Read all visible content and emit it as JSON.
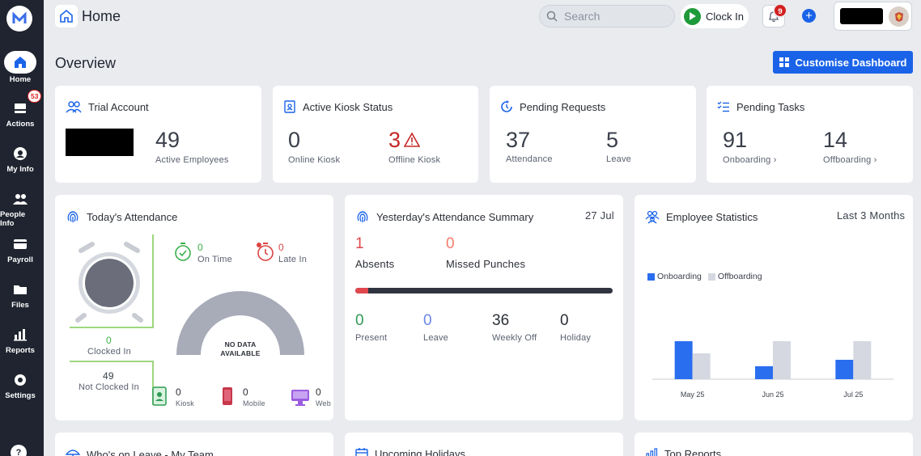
{
  "app": {
    "title": "Home",
    "search_placeholder": "Search",
    "clock_in_label": "Clock In",
    "notification_count": "9",
    "brand_color": "#1a63e8"
  },
  "sidebar": {
    "items": [
      {
        "label": "Home",
        "icon": "home-icon"
      },
      {
        "label": "Actions",
        "icon": "inbox-icon",
        "badge": "53"
      },
      {
        "label": "My Info",
        "icon": "user-circle-icon"
      },
      {
        "label": "People Info",
        "icon": "people-icon"
      },
      {
        "label": "Payroll",
        "icon": "card-icon"
      },
      {
        "label": "Files",
        "icon": "folder-icon"
      },
      {
        "label": "Reports",
        "icon": "bar-chart-icon"
      },
      {
        "label": "Settings",
        "icon": "gear-icon"
      }
    ],
    "help_label": "?"
  },
  "overview": {
    "title": "Overview",
    "customise_label": "Customise Dashboard"
  },
  "trial": {
    "title": "Trial Account",
    "count": "49",
    "label": "Active Employees"
  },
  "kiosk": {
    "title": "Active Kiosk Status",
    "online_count": "0",
    "online_label": "Online Kiosk",
    "offline_count": "3",
    "offline_label": "Offline Kiosk"
  },
  "pending_requests": {
    "title": "Pending Requests",
    "attendance_count": "37",
    "attendance_label": "Attendance",
    "leave_count": "5",
    "leave_label": "Leave"
  },
  "pending_tasks": {
    "title": "Pending Tasks",
    "onboarding_count": "91",
    "onboarding_label": "Onboarding",
    "offboarding_count": "14",
    "offboarding_label": "Offboarding"
  },
  "today": {
    "title": "Today's Attendance",
    "on_time_count": "0",
    "on_time_label": "On Time",
    "late_count": "0",
    "late_label": "Late In",
    "clocked_in_count": "0",
    "clocked_in_label": "Clocked In",
    "not_clocked_count": "49",
    "not_clocked_label": "Not Clocked In",
    "no_data_line1": "NO DATA",
    "no_data_line2": "AVAILABLE",
    "kiosk_count": "0",
    "kiosk_label": "Kiosk",
    "mobile_count": "0",
    "mobile_label": "Mobile",
    "web_count": "0",
    "web_label": "Web"
  },
  "yesterday": {
    "title": "Yesterday's Attendance Summary",
    "date": "27 Jul",
    "absents_count": "1",
    "absents_label": "Absents",
    "missed_count": "0",
    "missed_label": "Missed Punches",
    "progress_fraction": 0.05,
    "present_count": "0",
    "present_label": "Present",
    "leave_count": "0",
    "leave_label": "Leave",
    "weekly_off_count": "36",
    "weekly_off_label": "Weekly Off",
    "holiday_count": "0",
    "holiday_label": "Holiday"
  },
  "stats": {
    "title": "Employee Statistics",
    "period": "Last 3 Months"
  },
  "chart_data": {
    "type": "bar",
    "title": "Employee Statistics",
    "categories": [
      "May 25",
      "Jun 25",
      "Jul 25"
    ],
    "series": [
      {
        "name": "Onboarding",
        "color": "#2a6ef0",
        "values": [
          47,
          16,
          24
        ]
      },
      {
        "name": "Offboarding",
        "color": "#d5d8e0",
        "values": [
          32,
          47,
          47
        ]
      }
    ],
    "ylim": [
      0,
      60
    ],
    "legend": "top-left",
    "grid": false
  },
  "bottom": {
    "leave_title": "Who's on Leave - My Team",
    "holidays_title": "Upcoming Holidays",
    "reports_title": "Top Reports"
  }
}
